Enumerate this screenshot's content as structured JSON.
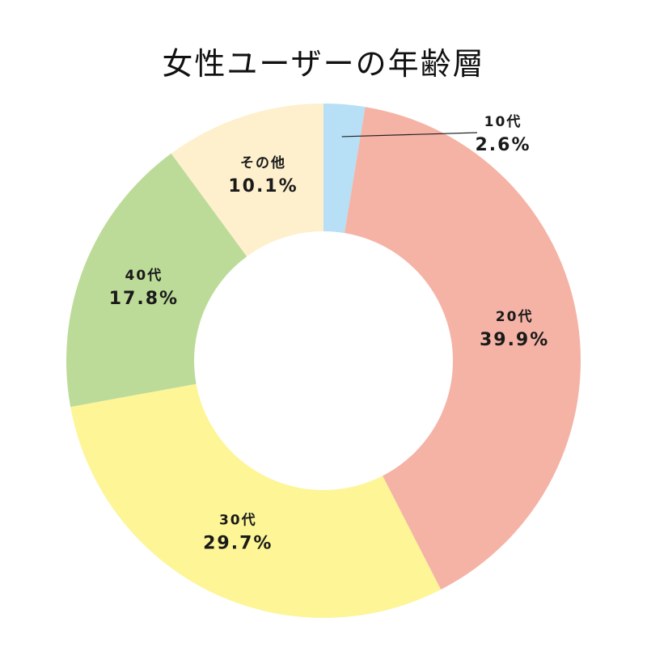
{
  "chart_data": {
    "type": "pie",
    "title": "女性ユーザーの年齢層",
    "donut": true,
    "start_angle_deg": 0,
    "direction": "clockwise",
    "categories": [
      "10代",
      "20代",
      "30代",
      "40代",
      "その他"
    ],
    "values": [
      2.6,
      39.9,
      29.7,
      17.8,
      10.1
    ],
    "value_labels": [
      "2.6%",
      "39.9%",
      "29.7%",
      "17.8%",
      "10.1%"
    ],
    "colors": [
      "#b7dff5",
      "#f5b3a6",
      "#fdf596",
      "#bcdb98",
      "#fef0cd"
    ],
    "grid": false,
    "legend": "none"
  }
}
